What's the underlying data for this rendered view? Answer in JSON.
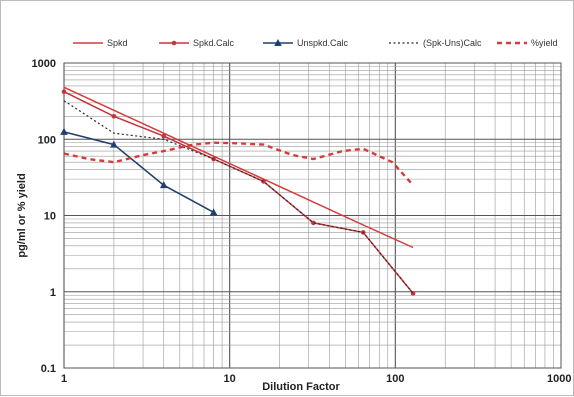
{
  "chart_data": {
    "type": "line",
    "title": "",
    "xlabel": "Dilution Factor",
    "ylabel": "pg/ml or % yield",
    "x_scale": "log",
    "y_scale": "log",
    "xlim": [
      1,
      1000
    ],
    "ylim": [
      0.1,
      1000
    ],
    "x_ticks": [
      "1",
      "10",
      "100",
      "1000"
    ],
    "y_ticks": [
      "0.1",
      "1",
      "10",
      "100",
      "1000"
    ],
    "grid": true,
    "legend_position": "top",
    "series": [
      {
        "name": "Spkd",
        "color": "#d43c3c",
        "style": "solid",
        "marker": "none",
        "x": [
          1,
          2,
          4,
          8,
          16,
          32,
          64,
          128
        ],
        "y": [
          480,
          240,
          120,
          60,
          30,
          15,
          7.5,
          3.8
        ]
      },
      {
        "name": "Spkd.Calc",
        "color": "#c8323c",
        "style": "solid",
        "marker": "dot",
        "x": [
          1,
          2,
          4,
          8,
          16,
          32,
          64,
          128
        ],
        "y": [
          420,
          200,
          110,
          55,
          28,
          8,
          6,
          0.95
        ]
      },
      {
        "name": "Unspkd.Calc",
        "color": "#1f3f6e",
        "style": "solid",
        "marker": "triangle",
        "x": [
          1,
          2,
          4,
          8
        ],
        "y": [
          125,
          85,
          25,
          11
        ]
      },
      {
        "name": "(Spk-Uns)Calc",
        "color": "#2a2a2a",
        "style": "dotted",
        "marker": "none",
        "x": [
          1,
          2,
          4,
          8,
          16,
          32,
          64,
          128
        ],
        "y": [
          320,
          120,
          100,
          55,
          28,
          8,
          6,
          0.95
        ]
      },
      {
        "name": "%yield",
        "color": "#d43c3c",
        "style": "dashed",
        "marker": "none",
        "x": [
          1,
          1.4,
          2,
          3,
          4,
          6,
          8,
          12,
          16,
          24,
          32,
          48,
          64,
          96,
          128
        ],
        "y": [
          65,
          55,
          50,
          62,
          70,
          85,
          90,
          88,
          85,
          62,
          55,
          70,
          75,
          50,
          25
        ]
      }
    ]
  }
}
